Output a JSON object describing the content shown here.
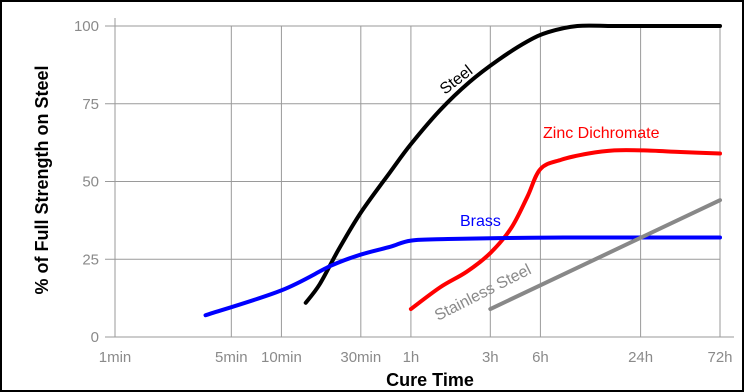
{
  "chart_data": {
    "type": "line",
    "xlabel": "Cure Time",
    "ylabel": "% of Full Strength on Steel",
    "x_scale": "log",
    "x_unit": "minutes",
    "x_ticks": [
      {
        "label": "1min",
        "value": 1
      },
      {
        "label": "5min",
        "value": 5
      },
      {
        "label": "10min",
        "value": 10
      },
      {
        "label": "30min",
        "value": 30
      },
      {
        "label": "1h",
        "value": 60
      },
      {
        "label": "3h",
        "value": 180
      },
      {
        "label": "6h",
        "value": 360
      },
      {
        "label": "24h",
        "value": 1440
      },
      {
        "label": "72h",
        "value": 4320
      }
    ],
    "y_ticks": [
      0,
      25,
      50,
      75,
      100
    ],
    "ylim": [
      0,
      100
    ],
    "grid": true,
    "series": [
      {
        "name": "Steel",
        "color": "#000000",
        "x": [
          14,
          17,
          22,
          30,
          45,
          60,
          90,
          135,
          200,
          300,
          400,
          600,
          1000,
          2000,
          4320
        ],
        "y": [
          11,
          17,
          28,
          40,
          53,
          62,
          73,
          82,
          89,
          95,
          98,
          100,
          100,
          100,
          100
        ]
      },
      {
        "name": "Zinc Dichromate",
        "color": "#ff0000",
        "x": [
          60,
          90,
          130,
          180,
          240,
          300,
          360,
          480,
          700,
          1000,
          1500,
          2500,
          4320
        ],
        "y": [
          9,
          16,
          21,
          27,
          35,
          45,
          54,
          57,
          59,
          60,
          60,
          59.5,
          59
        ]
      },
      {
        "name": "Brass",
        "color": "#0000ff",
        "x": [
          3.5,
          10,
          20,
          30,
          45,
          60,
          100,
          200,
          500,
          1000,
          2000,
          4320
        ],
        "y": [
          7,
          15,
          23,
          26.5,
          29,
          31,
          31.5,
          31.8,
          32,
          32,
          32,
          32
        ]
      },
      {
        "name": "Stainless Steel",
        "color": "#888888",
        "x": [
          180,
          4320
        ],
        "y": [
          9,
          44
        ]
      }
    ],
    "annotations": [
      {
        "text": "Steel",
        "series": "Steel"
      },
      {
        "text": "Zinc Dichromate",
        "series": "Zinc Dichromate"
      },
      {
        "text": "Brass",
        "series": "Brass"
      },
      {
        "text": "Stainless Steel",
        "series": "Stainless Steel"
      }
    ]
  }
}
